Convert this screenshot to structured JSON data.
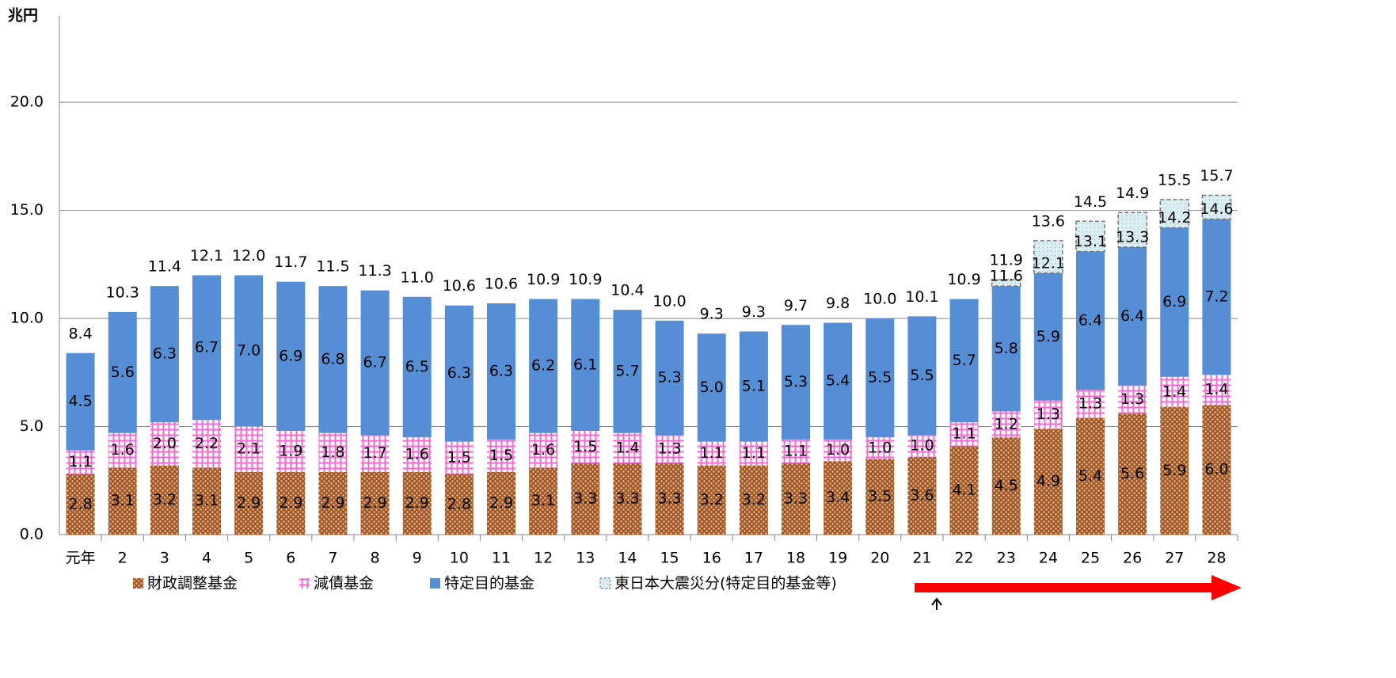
{
  "chart_data": {
    "type": "bar",
    "stacked": true,
    "unit_label": "兆円",
    "categories": [
      "元年",
      "2",
      "3",
      "4",
      "5",
      "6",
      "7",
      "8",
      "9",
      "10",
      "11",
      "12",
      "13",
      "14",
      "15",
      "16",
      "17",
      "18",
      "19",
      "20",
      "21",
      "22",
      "23",
      "24",
      "25",
      "26",
      "27",
      "28"
    ],
    "series": [
      {
        "name": "財政調整基金",
        "color": "#a0582a",
        "pattern": "dots",
        "values": [
          2.8,
          3.1,
          3.2,
          3.1,
          2.9,
          2.9,
          2.9,
          2.9,
          2.9,
          2.8,
          2.9,
          3.1,
          3.3,
          3.3,
          3.3,
          3.2,
          3.2,
          3.3,
          3.4,
          3.5,
          3.6,
          4.1,
          4.5,
          4.9,
          5.4,
          5.6,
          5.9,
          6.0
        ],
        "value_labels": [
          "2.8",
          "3.1",
          "3.2",
          "3.1",
          "2.9",
          "2.9",
          "2.9",
          "2.9",
          "2.9",
          "2.8",
          "2.9",
          "3.1",
          "3.3",
          "3.3",
          "3.3",
          "3.2",
          "3.2",
          "3.3",
          "3.4",
          "3.5",
          "3.6",
          "4.1",
          "4.5",
          "4.9",
          "5.4",
          "5.6",
          "5.9",
          "6.0"
        ]
      },
      {
        "name": "減債基金",
        "color": "#f06ad0",
        "pattern": "grid",
        "values": [
          1.1,
          1.6,
          2.0,
          2.2,
          2.1,
          1.9,
          1.8,
          1.7,
          1.6,
          1.5,
          1.5,
          1.6,
          1.5,
          1.4,
          1.3,
          1.1,
          1.1,
          1.1,
          1.0,
          1.0,
          1.0,
          1.1,
          1.2,
          1.3,
          1.3,
          1.3,
          1.4,
          1.4
        ],
        "value_labels": [
          "1.1",
          "1.6",
          "2.0",
          "2.2",
          "2.1",
          "1.9",
          "1.8",
          "1.7",
          "1.6",
          "1.5",
          "1.5",
          "1.6",
          "1.5",
          "1.4",
          "1.3",
          "1.1",
          "1.1",
          "1.1",
          "1.0",
          "1.0",
          "1.0",
          "1.1",
          "1.2",
          "1.3",
          "1.3",
          "1.3",
          "1.4",
          "1.4"
        ]
      },
      {
        "name": "特定目的基金",
        "color": "#558ed5",
        "pattern": "solid",
        "values": [
          4.5,
          5.6,
          6.3,
          6.7,
          7.0,
          6.9,
          6.8,
          6.7,
          6.5,
          6.3,
          6.3,
          6.2,
          6.1,
          5.7,
          5.3,
          5.0,
          5.1,
          5.3,
          5.4,
          5.5,
          5.5,
          5.7,
          5.8,
          5.9,
          6.4,
          6.4,
          6.9,
          7.2
        ],
        "value_labels": [
          "4.5",
          "5.6",
          "6.3",
          "6.7",
          "7.0",
          "6.9",
          "6.8",
          "6.7",
          "6.5",
          "6.3",
          "6.3",
          "6.2",
          "6.1",
          "5.7",
          "5.3",
          "5.0",
          "5.1",
          "5.3",
          "5.4",
          "5.5",
          "5.5",
          "5.7",
          "5.8",
          "5.9",
          "6.4",
          "6.4",
          "6.9",
          "7.2"
        ]
      },
      {
        "name": "東日本大震災分(特定目的基金等)",
        "color": "#dbeef4",
        "pattern": "dashed",
        "values": [
          null,
          null,
          null,
          null,
          null,
          null,
          null,
          null,
          null,
          null,
          null,
          null,
          null,
          null,
          null,
          null,
          null,
          null,
          null,
          null,
          null,
          null,
          0.3,
          1.5,
          1.4,
          1.6,
          1.3,
          1.1
        ]
      }
    ],
    "subtotal_labels": [
      null,
      null,
      null,
      null,
      null,
      null,
      null,
      null,
      null,
      null,
      null,
      null,
      null,
      null,
      null,
      null,
      null,
      null,
      null,
      null,
      null,
      null,
      "11.6",
      "12.1",
      "13.1",
      "13.3",
      "14.2",
      "14.6"
    ],
    "total_labels": [
      "8.4",
      "10.3",
      "11.4",
      "12.1",
      "12.0",
      "11.7",
      "11.5",
      "11.3",
      "11.0",
      "10.6",
      "10.6",
      "10.9",
      "10.9",
      "10.4",
      "10.0",
      "9.3",
      "9.3",
      "9.7",
      "9.8",
      "10.0",
      "10.1",
      "10.9",
      "11.9",
      "13.6",
      "14.5",
      "14.9",
      "15.5",
      "15.7"
    ],
    "ylim": [
      0,
      24
    ],
    "yticks": [
      {
        "value": 0,
        "label": "0.0"
      },
      {
        "value": 5,
        "label": "5.0"
      },
      {
        "value": 10,
        "label": "10.0"
      },
      {
        "value": 15,
        "label": "15.0"
      },
      {
        "value": 20,
        "label": "20.0"
      }
    ],
    "grid": true,
    "legend": "bottom"
  }
}
